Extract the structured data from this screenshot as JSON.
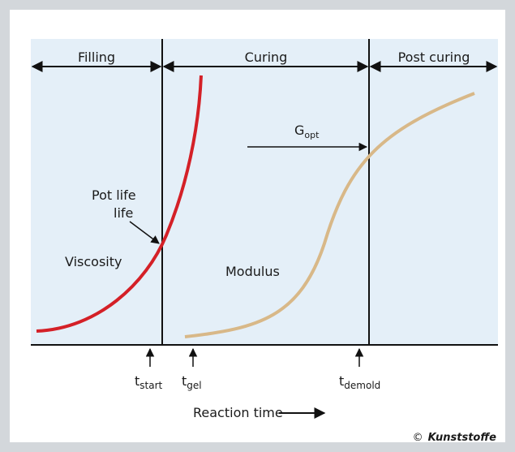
{
  "phases": [
    "Filling",
    "Curing",
    "Post curing"
  ],
  "curves": {
    "viscosity": "Viscosity",
    "modulus": "Modulus"
  },
  "annotations": {
    "pot_life": [
      "Pot life",
      "life"
    ],
    "g_opt": {
      "main": "G",
      "sub": "opt"
    }
  },
  "time_marks": [
    {
      "main": "t",
      "sub": "start"
    },
    {
      "main": "t",
      "sub": "gel"
    },
    {
      "main": "t",
      "sub": "demold"
    }
  ],
  "axis_label": "Reaction time",
  "credit": {
    "symbol": "©",
    "name": "Kunststoffe"
  }
}
